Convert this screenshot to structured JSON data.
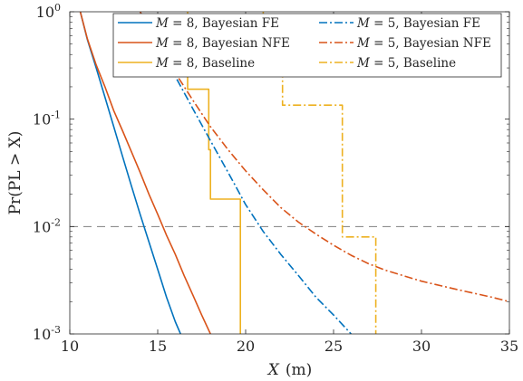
{
  "chart_data": {
    "type": "line",
    "xlabel_var": "X",
    "xlabel_unit": "(m)",
    "ylabel": "Pr(PL > X)",
    "xlim": [
      10,
      35
    ],
    "ylim": [
      0.001,
      1
    ],
    "yscale": "log",
    "x_ticks": [
      10,
      15,
      20,
      25,
      30,
      35
    ],
    "x_tick_labels": [
      "10",
      "15",
      "20",
      "25",
      "30",
      "35"
    ],
    "y_ticks": [
      0.001,
      0.01,
      0.1,
      1
    ],
    "y_tick_labels": [
      {
        "base": "10",
        "exp": "-3"
      },
      {
        "base": "10",
        "exp": "-2"
      },
      {
        "base": "10",
        "exp": "-1"
      },
      {
        "base": "10",
        "exp": "0"
      }
    ],
    "grid": false,
    "legend_position": "top-right",
    "reference_line": {
      "y": 0.01,
      "style": "dashed",
      "color": "#7f7f7f"
    },
    "series": [
      {
        "name_var": "M",
        "name_rest": " = 8, Bayesian FE",
        "color": "#0072BD",
        "dash": "solid",
        "x": [
          10.6,
          11.0,
          11.5,
          12.0,
          12.5,
          13.0,
          13.5,
          14.0,
          14.5,
          15.0,
          15.5,
          16.0,
          16.3
        ],
        "y": [
          1.0,
          0.55,
          0.3,
          0.16,
          0.085,
          0.045,
          0.024,
          0.013,
          0.0072,
          0.004,
          0.0022,
          0.0013,
          0.001
        ]
      },
      {
        "name_var": "M",
        "name_rest": " = 8, Bayesian NFE",
        "color": "#D95319",
        "dash": "solid",
        "x": [
          10.6,
          11.0,
          11.5,
          12.0,
          12.5,
          13.0,
          13.5,
          14.0,
          14.5,
          15.0,
          15.5,
          16.0,
          16.5,
          17.0,
          17.5,
          18.0
        ],
        "y": [
          1.0,
          0.56,
          0.32,
          0.2,
          0.12,
          0.078,
          0.05,
          0.032,
          0.02,
          0.013,
          0.0083,
          0.0055,
          0.0035,
          0.0023,
          0.0015,
          0.001
        ]
      },
      {
        "name_var": "M",
        "name_rest": " = 8, Baseline",
        "color": "#EDB120",
        "dash": "solid",
        "x": [
          16.7,
          16.7,
          17.9,
          17.9,
          18.0,
          18.0,
          19.7,
          19.7
        ],
        "y": [
          1.0,
          0.19,
          0.19,
          0.052,
          0.052,
          0.018,
          0.018,
          0.001
        ]
      },
      {
        "name_var": "M",
        "name_rest": " = 5, Bayesian FE",
        "color": "#0072BD",
        "dash": "dashdot",
        "x": [
          14.0,
          15.0,
          16.0,
          17.0,
          18.0,
          19.0,
          20.0,
          21.0,
          22.0,
          23.0,
          24.0,
          25.0,
          26.0
        ],
        "y": [
          1.0,
          0.5,
          0.25,
          0.125,
          0.063,
          0.032,
          0.016,
          0.009,
          0.0055,
          0.0035,
          0.0022,
          0.0015,
          0.001
        ]
      },
      {
        "name_var": "M",
        "name_rest": " = 5, Bayesian NFE",
        "color": "#D95319",
        "dash": "dashdot",
        "x": [
          14.0,
          15.0,
          16.0,
          17.0,
          18.0,
          19.0,
          20.0,
          21.0,
          22.0,
          23.0,
          24.0,
          25.0,
          26.0,
          27.0,
          28.0,
          30.0,
          32.0,
          34.0,
          35.0
        ],
        "y": [
          1.0,
          0.52,
          0.27,
          0.15,
          0.085,
          0.052,
          0.033,
          0.022,
          0.015,
          0.011,
          0.0085,
          0.0067,
          0.0054,
          0.0045,
          0.0039,
          0.0031,
          0.0026,
          0.0022,
          0.002
        ]
      },
      {
        "name_var": "M",
        "name_rest": " = 5, Baseline",
        "color": "#EDB120",
        "dash": "dashdot",
        "x": [
          21.0,
          21.0,
          22.1,
          22.1,
          25.5,
          25.5,
          27.4,
          27.4
        ],
        "y": [
          1.0,
          0.36,
          0.36,
          0.135,
          0.135,
          0.008,
          0.008,
          0.001
        ]
      }
    ]
  }
}
